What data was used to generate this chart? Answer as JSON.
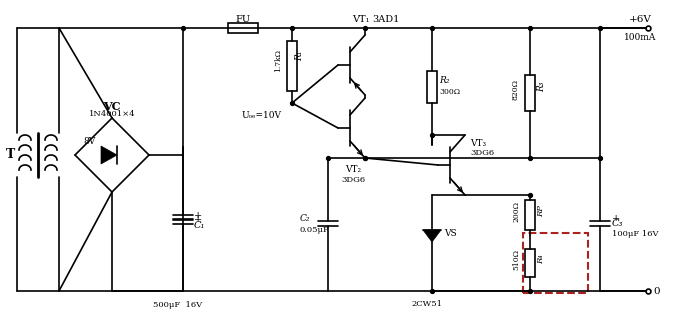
{
  "bg": "#ffffff",
  "lc": "#000000",
  "red": "#aa2222",
  "figsize": [
    6.75,
    3.13
  ],
  "dpi": 100,
  "xlim": [
    0,
    675
  ],
  "ylim": [
    0,
    313
  ],
  "TR": 285,
  "BR": 22,
  "labels": {
    "T": "T",
    "VC": "VC",
    "VC_sub": "1N4001×4",
    "V8": "8V",
    "C1": "C₁",
    "C1_val": "500μF  16V",
    "FU": "FU",
    "R1": "R₁",
    "R1_val": "1.7kΩ",
    "Usc": "Uₒₑ=10V",
    "VT1": "VT₁",
    "VT1_type": "3AD1",
    "VT2": "VT₂",
    "VT2_type": "3DG6",
    "VT3": "VT₃",
    "VT3_type": "3DG6",
    "R2": "R₂",
    "R2_val": "300Ω",
    "C2": "C₂",
    "C2_val": "0.05μF",
    "VS": "VS",
    "VS_type": "2CW51",
    "R3": "R₃",
    "R3_val": "820Ω",
    "RP": "RP",
    "RP_val": "200Ω",
    "R4": "R₄",
    "R4_val": "510Ω",
    "C3": "C₃",
    "C3_val": "100μF 16V",
    "Vout": "+6V",
    "Iout": "100mA",
    "GND": "0"
  }
}
